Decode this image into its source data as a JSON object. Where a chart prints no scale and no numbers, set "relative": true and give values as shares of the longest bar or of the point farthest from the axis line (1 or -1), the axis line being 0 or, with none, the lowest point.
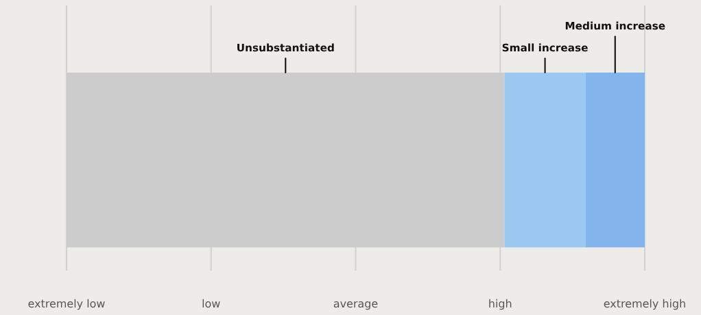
{
  "chart_data": {
    "type": "bar",
    "orientation": "horizontal",
    "stacked": true,
    "relative": true,
    "categories": [
      null
    ],
    "series": [
      {
        "color": "#cccccc",
        "values": [
          0.7575
        ]
      },
      {
        "color": "#9ac8f1",
        "values": [
          0.14
        ]
      },
      {
        "color": "#83b5ec",
        "values": [
          0.1025
        ]
      }
    ],
    "grid": "x",
    "legend": false,
    "annotations": [
      "Unsubstantiated",
      "Small increase",
      "Medium increase",
      "extremely low",
      "low",
      "average",
      "high",
      "extremely high"
    ]
  }
}
